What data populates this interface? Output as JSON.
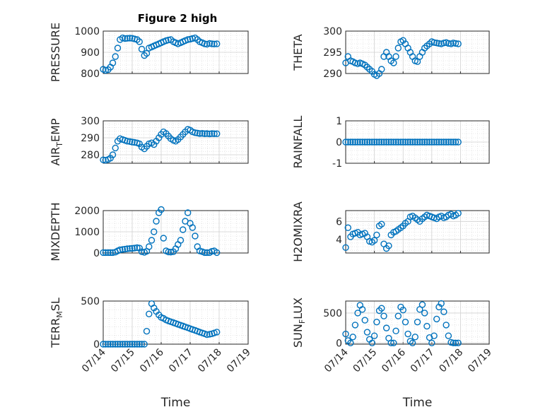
{
  "figure": {
    "title": "Figure 2 high"
  },
  "colors": {
    "marker": "#0072BD",
    "axis": "#262626",
    "grid": "#d0d0d0"
  },
  "x_axis": {
    "label": "Time",
    "tick_labels": [
      "07/14",
      "07/15",
      "07/16",
      "07/17",
      "07/18",
      "07/19"
    ],
    "range_days": [
      0,
      5
    ]
  },
  "chart_data": [
    {
      "type": "scatter",
      "name": "pressure",
      "ylabel": "PRESSURE",
      "ylim": [
        800,
        1000
      ],
      "yticks": [
        800,
        900,
        1000
      ],
      "title": "Figure 2 high",
      "x": [
        0.0,
        0.08,
        0.17,
        0.25,
        0.33,
        0.42,
        0.5,
        0.58,
        0.67,
        0.75,
        0.83,
        0.92,
        1.0,
        1.08,
        1.17,
        1.25,
        1.33,
        1.42,
        1.5,
        1.58,
        1.67,
        1.75,
        1.83,
        1.92,
        2.0,
        2.08,
        2.17,
        2.25,
        2.33,
        2.42,
        2.5,
        2.58,
        2.67,
        2.75,
        2.83,
        2.92,
        3.0,
        3.08,
        3.17,
        3.25,
        3.33,
        3.42,
        3.5,
        3.58,
        3.67,
        3.75,
        3.83,
        3.92
      ],
      "y": [
        820,
        815,
        818,
        830,
        850,
        880,
        920,
        960,
        968,
        965,
        966,
        967,
        966,
        963,
        960,
        950,
        915,
        885,
        895,
        920,
        925,
        930,
        935,
        940,
        945,
        950,
        955,
        958,
        960,
        950,
        945,
        940,
        945,
        950,
        955,
        960,
        962,
        965,
        968,
        960,
        950,
        945,
        940,
        938,
        942,
        940,
        939,
        940
      ]
    },
    {
      "type": "scatter",
      "name": "theta",
      "ylabel": "THETA",
      "ylim": [
        290,
        300
      ],
      "yticks": [
        290,
        295,
        300
      ],
      "x": [
        0.0,
        0.08,
        0.17,
        0.25,
        0.33,
        0.42,
        0.5,
        0.58,
        0.67,
        0.75,
        0.83,
        0.92,
        1.0,
        1.08,
        1.17,
        1.25,
        1.33,
        1.42,
        1.5,
        1.58,
        1.67,
        1.75,
        1.83,
        1.92,
        2.0,
        2.08,
        2.17,
        2.25,
        2.33,
        2.42,
        2.5,
        2.58,
        2.67,
        2.75,
        2.83,
        2.92,
        3.0,
        3.08,
        3.17,
        3.25,
        3.33,
        3.42,
        3.5,
        3.58,
        3.67,
        3.75,
        3.83,
        3.92
      ],
      "y": [
        292.5,
        294,
        293,
        292.8,
        292.5,
        292.3,
        292.5,
        292.3,
        292,
        291.5,
        291,
        290.5,
        289.8,
        289.5,
        290,
        291,
        294,
        295,
        294,
        293,
        292.5,
        294,
        296,
        297.5,
        297.8,
        297,
        296,
        295,
        294,
        293,
        292.8,
        294,
        295,
        296,
        296.5,
        297,
        297.5,
        297.3,
        297.2,
        297.1,
        297,
        297.2,
        297.3,
        297.1,
        297,
        297.2,
        297.1,
        297
      ]
    },
    {
      "type": "scatter",
      "name": "air-temp",
      "ylabel": "AIR_TEMP",
      "ylim": [
        275,
        300
      ],
      "yticks": [
        280,
        290,
        300
      ],
      "x": [
        0.0,
        0.08,
        0.17,
        0.25,
        0.33,
        0.42,
        0.5,
        0.58,
        0.67,
        0.75,
        0.83,
        0.92,
        1.0,
        1.08,
        1.17,
        1.25,
        1.33,
        1.42,
        1.5,
        1.58,
        1.67,
        1.75,
        1.83,
        1.92,
        2.0,
        2.08,
        2.17,
        2.25,
        2.33,
        2.42,
        2.5,
        2.58,
        2.67,
        2.75,
        2.83,
        2.92,
        3.0,
        3.08,
        3.17,
        3.25,
        3.33,
        3.42,
        3.5,
        3.58,
        3.67,
        3.75,
        3.83,
        3.92
      ],
      "y": [
        277,
        276.8,
        277.2,
        278,
        280,
        284,
        288,
        289.5,
        289,
        288.5,
        288,
        287.8,
        287.5,
        287.3,
        287,
        286.5,
        284.5,
        283.5,
        285,
        286.5,
        287,
        286,
        288,
        290,
        292,
        293.5,
        292.5,
        291,
        289.5,
        288.5,
        288,
        289,
        290.5,
        292,
        293.5,
        295,
        294.5,
        293.5,
        293,
        292.8,
        292.5,
        292.6,
        292.4,
        292.5,
        292.3,
        292.5,
        292.4,
        292.4
      ]
    },
    {
      "type": "scatter",
      "name": "rainfall",
      "ylabel": "RAINFALL",
      "ylim": [
        -1,
        1
      ],
      "yticks": [
        -1,
        0,
        1
      ],
      "x": [
        0.0,
        0.08,
        0.17,
        0.25,
        0.33,
        0.42,
        0.5,
        0.58,
        0.67,
        0.75,
        0.83,
        0.92,
        1.0,
        1.08,
        1.17,
        1.25,
        1.33,
        1.42,
        1.5,
        1.58,
        1.67,
        1.75,
        1.83,
        1.92,
        2.0,
        2.08,
        2.17,
        2.25,
        2.33,
        2.42,
        2.5,
        2.58,
        2.67,
        2.75,
        2.83,
        2.92,
        3.0,
        3.08,
        3.17,
        3.25,
        3.33,
        3.42,
        3.5,
        3.58,
        3.67,
        3.75,
        3.83,
        3.92
      ],
      "y": [
        0,
        0,
        0,
        0,
        0,
        0,
        0,
        0,
        0,
        0,
        0,
        0,
        0,
        0,
        0,
        0,
        0,
        0,
        0,
        0,
        0,
        0,
        0,
        0,
        0,
        0,
        0,
        0,
        0,
        0,
        0,
        0,
        0,
        0,
        0,
        0,
        0,
        0,
        0,
        0,
        0,
        0,
        0,
        0,
        0,
        0,
        0,
        0
      ]
    },
    {
      "type": "scatter",
      "name": "mixdepth",
      "ylabel": "MIXDEPTH",
      "ylim": [
        0,
        2000
      ],
      "yticks": [
        0,
        1000,
        2000
      ],
      "x": [
        0.0,
        0.08,
        0.17,
        0.25,
        0.33,
        0.42,
        0.5,
        0.58,
        0.67,
        0.75,
        0.83,
        0.92,
        1.0,
        1.08,
        1.17,
        1.25,
        1.33,
        1.42,
        1.5,
        1.58,
        1.67,
        1.75,
        1.83,
        1.92,
        2.0,
        2.08,
        2.17,
        2.25,
        2.33,
        2.42,
        2.5,
        2.58,
        2.67,
        2.75,
        2.83,
        2.92,
        3.0,
        3.08,
        3.17,
        3.25,
        3.33,
        3.42,
        3.5,
        3.58,
        3.67,
        3.75,
        3.83,
        3.92
      ],
      "y": [
        20,
        20,
        20,
        20,
        20,
        40,
        100,
        150,
        170,
        180,
        200,
        210,
        220,
        230,
        250,
        230,
        60,
        30,
        80,
        300,
        600,
        1000,
        1500,
        1900,
        2050,
        700,
        100,
        50,
        40,
        60,
        200,
        400,
        600,
        1100,
        1500,
        1900,
        1400,
        1200,
        800,
        300,
        100,
        60,
        20,
        20,
        20,
        80,
        100,
        20
      ]
    },
    {
      "type": "scatter",
      "name": "h2omixra",
      "ylabel": "H2OMIXRA",
      "ylim": [
        2.5,
        7.2
      ],
      "yticks": [
        4,
        6
      ],
      "x": [
        0.0,
        0.08,
        0.17,
        0.25,
        0.33,
        0.42,
        0.5,
        0.58,
        0.67,
        0.75,
        0.83,
        0.92,
        1.0,
        1.08,
        1.17,
        1.25,
        1.33,
        1.42,
        1.5,
        1.58,
        1.67,
        1.75,
        1.83,
        1.92,
        2.0,
        2.08,
        2.17,
        2.25,
        2.33,
        2.42,
        2.5,
        2.58,
        2.67,
        2.75,
        2.83,
        2.92,
        3.0,
        3.08,
        3.17,
        3.25,
        3.33,
        3.42,
        3.5,
        3.58,
        3.67,
        3.75,
        3.83,
        3.92
      ],
      "y": [
        3.1,
        5.3,
        4.3,
        4.6,
        4.7,
        4.8,
        4.5,
        4.6,
        4.7,
        4.3,
        3.8,
        3.7,
        3.9,
        4.5,
        5.5,
        5.7,
        3.5,
        3.0,
        3.3,
        4.5,
        4.8,
        4.9,
        5.1,
        5.3,
        5.5,
        5.8,
        6.0,
        6.5,
        6.6,
        6.4,
        6.2,
        6.0,
        6.3,
        6.5,
        6.7,
        6.6,
        6.5,
        6.4,
        6.3,
        6.5,
        6.6,
        6.4,
        6.5,
        6.7,
        6.8,
        6.6,
        6.7,
        6.9
      ]
    },
    {
      "type": "scatter",
      "name": "terr-msl",
      "ylabel": "TERR_MSL",
      "ylim": [
        0,
        500
      ],
      "yticks": [
        0,
        500
      ],
      "x": [
        0.0,
        0.08,
        0.17,
        0.25,
        0.33,
        0.42,
        0.5,
        0.58,
        0.67,
        0.75,
        0.83,
        0.92,
        1.0,
        1.08,
        1.17,
        1.25,
        1.33,
        1.42,
        1.5,
        1.58,
        1.67,
        1.75,
        1.83,
        1.92,
        2.0,
        2.08,
        2.17,
        2.25,
        2.33,
        2.42,
        2.5,
        2.58,
        2.67,
        2.75,
        2.83,
        2.92,
        3.0,
        3.08,
        3.17,
        3.25,
        3.33,
        3.42,
        3.5,
        3.58,
        3.67,
        3.75,
        3.83,
        3.92
      ],
      "y": [
        0,
        0,
        0,
        0,
        0,
        0,
        0,
        0,
        0,
        0,
        0,
        0,
        0,
        0,
        0,
        0,
        0,
        0,
        150,
        350,
        470,
        420,
        380,
        340,
        310,
        300,
        280,
        270,
        260,
        250,
        240,
        230,
        220,
        210,
        200,
        190,
        180,
        170,
        160,
        150,
        140,
        130,
        120,
        110,
        115,
        120,
        130,
        140
      ]
    },
    {
      "type": "scatter",
      "name": "sun-flux",
      "ylabel": "SUN_FLUX",
      "ylim": [
        -20,
        700
      ],
      "yticks": [
        0,
        500
      ],
      "x": [
        0.0,
        0.08,
        0.17,
        0.25,
        0.33,
        0.42,
        0.5,
        0.58,
        0.67,
        0.75,
        0.83,
        0.92,
        1.0,
        1.08,
        1.17,
        1.25,
        1.33,
        1.42,
        1.5,
        1.58,
        1.67,
        1.75,
        1.83,
        1.92,
        2.0,
        2.08,
        2.17,
        2.25,
        2.33,
        2.42,
        2.5,
        2.58,
        2.67,
        2.75,
        2.83,
        2.92,
        3.0,
        3.08,
        3.17,
        3.25,
        3.33,
        3.42,
        3.5,
        3.58,
        3.67,
        3.75,
        3.83,
        3.92
      ],
      "y": [
        150,
        40,
        0,
        100,
        300,
        500,
        630,
        560,
        380,
        180,
        60,
        0,
        120,
        350,
        540,
        580,
        450,
        250,
        80,
        0,
        0,
        200,
        450,
        600,
        550,
        350,
        150,
        30,
        0,
        100,
        350,
        560,
        640,
        500,
        280,
        90,
        0,
        120,
        400,
        600,
        660,
        520,
        300,
        120,
        10,
        0,
        0,
        0
      ]
    }
  ]
}
